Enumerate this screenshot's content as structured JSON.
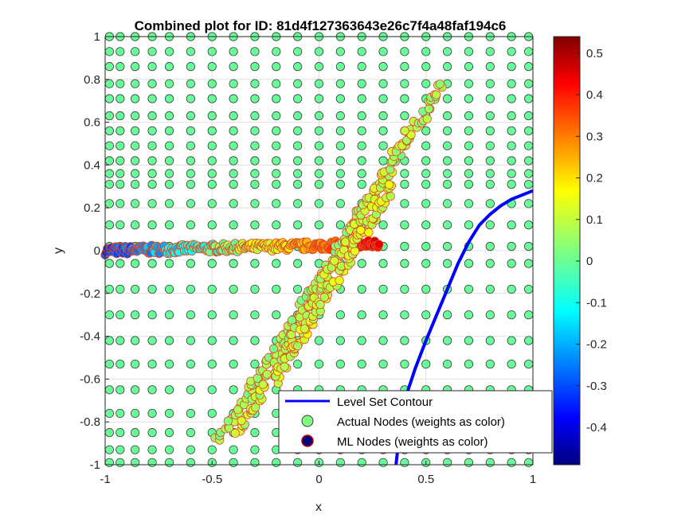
{
  "chart_data": {
    "type": "scatter",
    "title": "Combined plot for ID: 81d4f127363643e26c7f4a48faf194c6",
    "xlabel": "x",
    "ylabel": "y",
    "xlim": [
      -1,
      1
    ],
    "ylim": [
      -1,
      1
    ],
    "grid": true,
    "x_ticks": [
      -1,
      -0.5,
      0,
      0.5,
      1
    ],
    "x_tick_labels": [
      "-1",
      "-0.5",
      "0",
      "0.5",
      "1"
    ],
    "y_ticks": [
      -1,
      -0.8,
      -0.6,
      -0.4,
      -0.2,
      0,
      0.2,
      0.4,
      0.6,
      0.8,
      1
    ],
    "y_tick_labels": [
      "-1",
      "-0.8",
      "-0.6",
      "-0.4",
      "-0.2",
      "0",
      "0.2",
      "0.4",
      "0.6",
      "0.8",
      "1"
    ],
    "colorbar": {
      "colormap": "jet",
      "limits": [
        -0.49,
        0.54
      ],
      "ticks": [
        -0.4,
        -0.3,
        -0.2,
        -0.1,
        0,
        0.1,
        0.2,
        0.3,
        0.4,
        0.5
      ],
      "tick_labels": [
        "-0.4",
        "-0.3",
        "-0.2",
        "-0.1",
        "0",
        "0.1",
        "0.2",
        "0.3",
        "0.4",
        "0.5"
      ]
    },
    "level_set_contour": {
      "color": "#0000ff",
      "points": [
        [
          0.36,
          -1.0
        ],
        [
          0.38,
          -0.82
        ],
        [
          0.4,
          -0.7
        ],
        [
          0.45,
          -0.55
        ],
        [
          0.5,
          -0.42
        ],
        [
          0.55,
          -0.3
        ],
        [
          0.6,
          -0.18
        ],
        [
          0.65,
          -0.06
        ],
        [
          0.7,
          0.04
        ],
        [
          0.75,
          0.12
        ],
        [
          0.8,
          0.17
        ],
        [
          0.85,
          0.21
        ],
        [
          0.9,
          0.24
        ],
        [
          0.95,
          0.26
        ],
        [
          1.0,
          0.28
        ]
      ]
    },
    "actual_nodes": {
      "weight": 0,
      "grid_columns": [
        -0.98,
        -0.93,
        -0.86,
        -0.78,
        -0.7,
        -0.6,
        -0.5,
        -0.4,
        -0.3,
        -0.2,
        -0.1,
        0.0,
        0.1,
        0.2,
        0.3,
        0.4,
        0.5,
        0.6,
        0.7,
        0.8,
        0.9,
        0.98
      ],
      "upper_rows": [
        0.31,
        0.36,
        0.42,
        0.49,
        0.56,
        0.63,
        0.71,
        0.78,
        0.86,
        0.93,
        1.0
      ],
      "lower_rows": [
        -0.06,
        -0.18,
        -0.3,
        -0.42,
        -0.53,
        -0.65,
        -0.76,
        -0.85,
        -0.93,
        -0.99
      ],
      "row_near_axis": [
        0.02,
        0.12,
        0.22
      ],
      "min_x_above": [
        -1.0,
        -1.0,
        -1.0,
        -1.0,
        -1.0,
        -1.0,
        -1.0,
        -1.0,
        -1.0,
        -1.0,
        -1.0,
        -1.0,
        -1.0,
        -1.0,
        -1.0,
        -1.0,
        -1.0,
        -1.0,
        0.5,
        0.6,
        0.7,
        0.8
      ]
    },
    "ml_nodes": {
      "branches": [
        {
          "name": "horizontal",
          "x": [
            -1.0,
            0.28
          ],
          "y": [
            0.0,
            0.03
          ],
          "weight_start": -0.32,
          "weight_end": 0.45,
          "count": 260
        },
        {
          "name": "diagonal-a",
          "x": [
            -0.47,
            0.58
          ],
          "y": [
            -0.88,
            0.78
          ],
          "weight": 0.05,
          "count": 150
        },
        {
          "name": "diagonal-b",
          "x": [
            -0.38,
            0.42
          ],
          "y": [
            -0.85,
            0.55
          ],
          "weight": 0.08,
          "count": 120
        },
        {
          "name": "diagonal-c",
          "x": [
            -0.2,
            0.34
          ],
          "y": [
            -0.6,
            0.3
          ],
          "weight": 0.1,
          "count": 90
        }
      ]
    },
    "legend": {
      "location": "bottom-right",
      "entries": [
        {
          "label": "Level Set Contour",
          "marker": "line",
          "color": "#0000ff"
        },
        {
          "label": "Actual Nodes (weights as color)",
          "marker": "circle",
          "face": "#80ff80",
          "edge": "#3a3a3a"
        },
        {
          "label": "ML Nodes (weights as color)",
          "marker": "circle",
          "face": "#00007f",
          "edge": "#c00000"
        }
      ]
    },
    "colors": {
      "axis": "#262626",
      "grid": "#e0e0e0",
      "actual_edge": "#3a3a3a",
      "ml_edge": "#d84a2a"
    }
  }
}
